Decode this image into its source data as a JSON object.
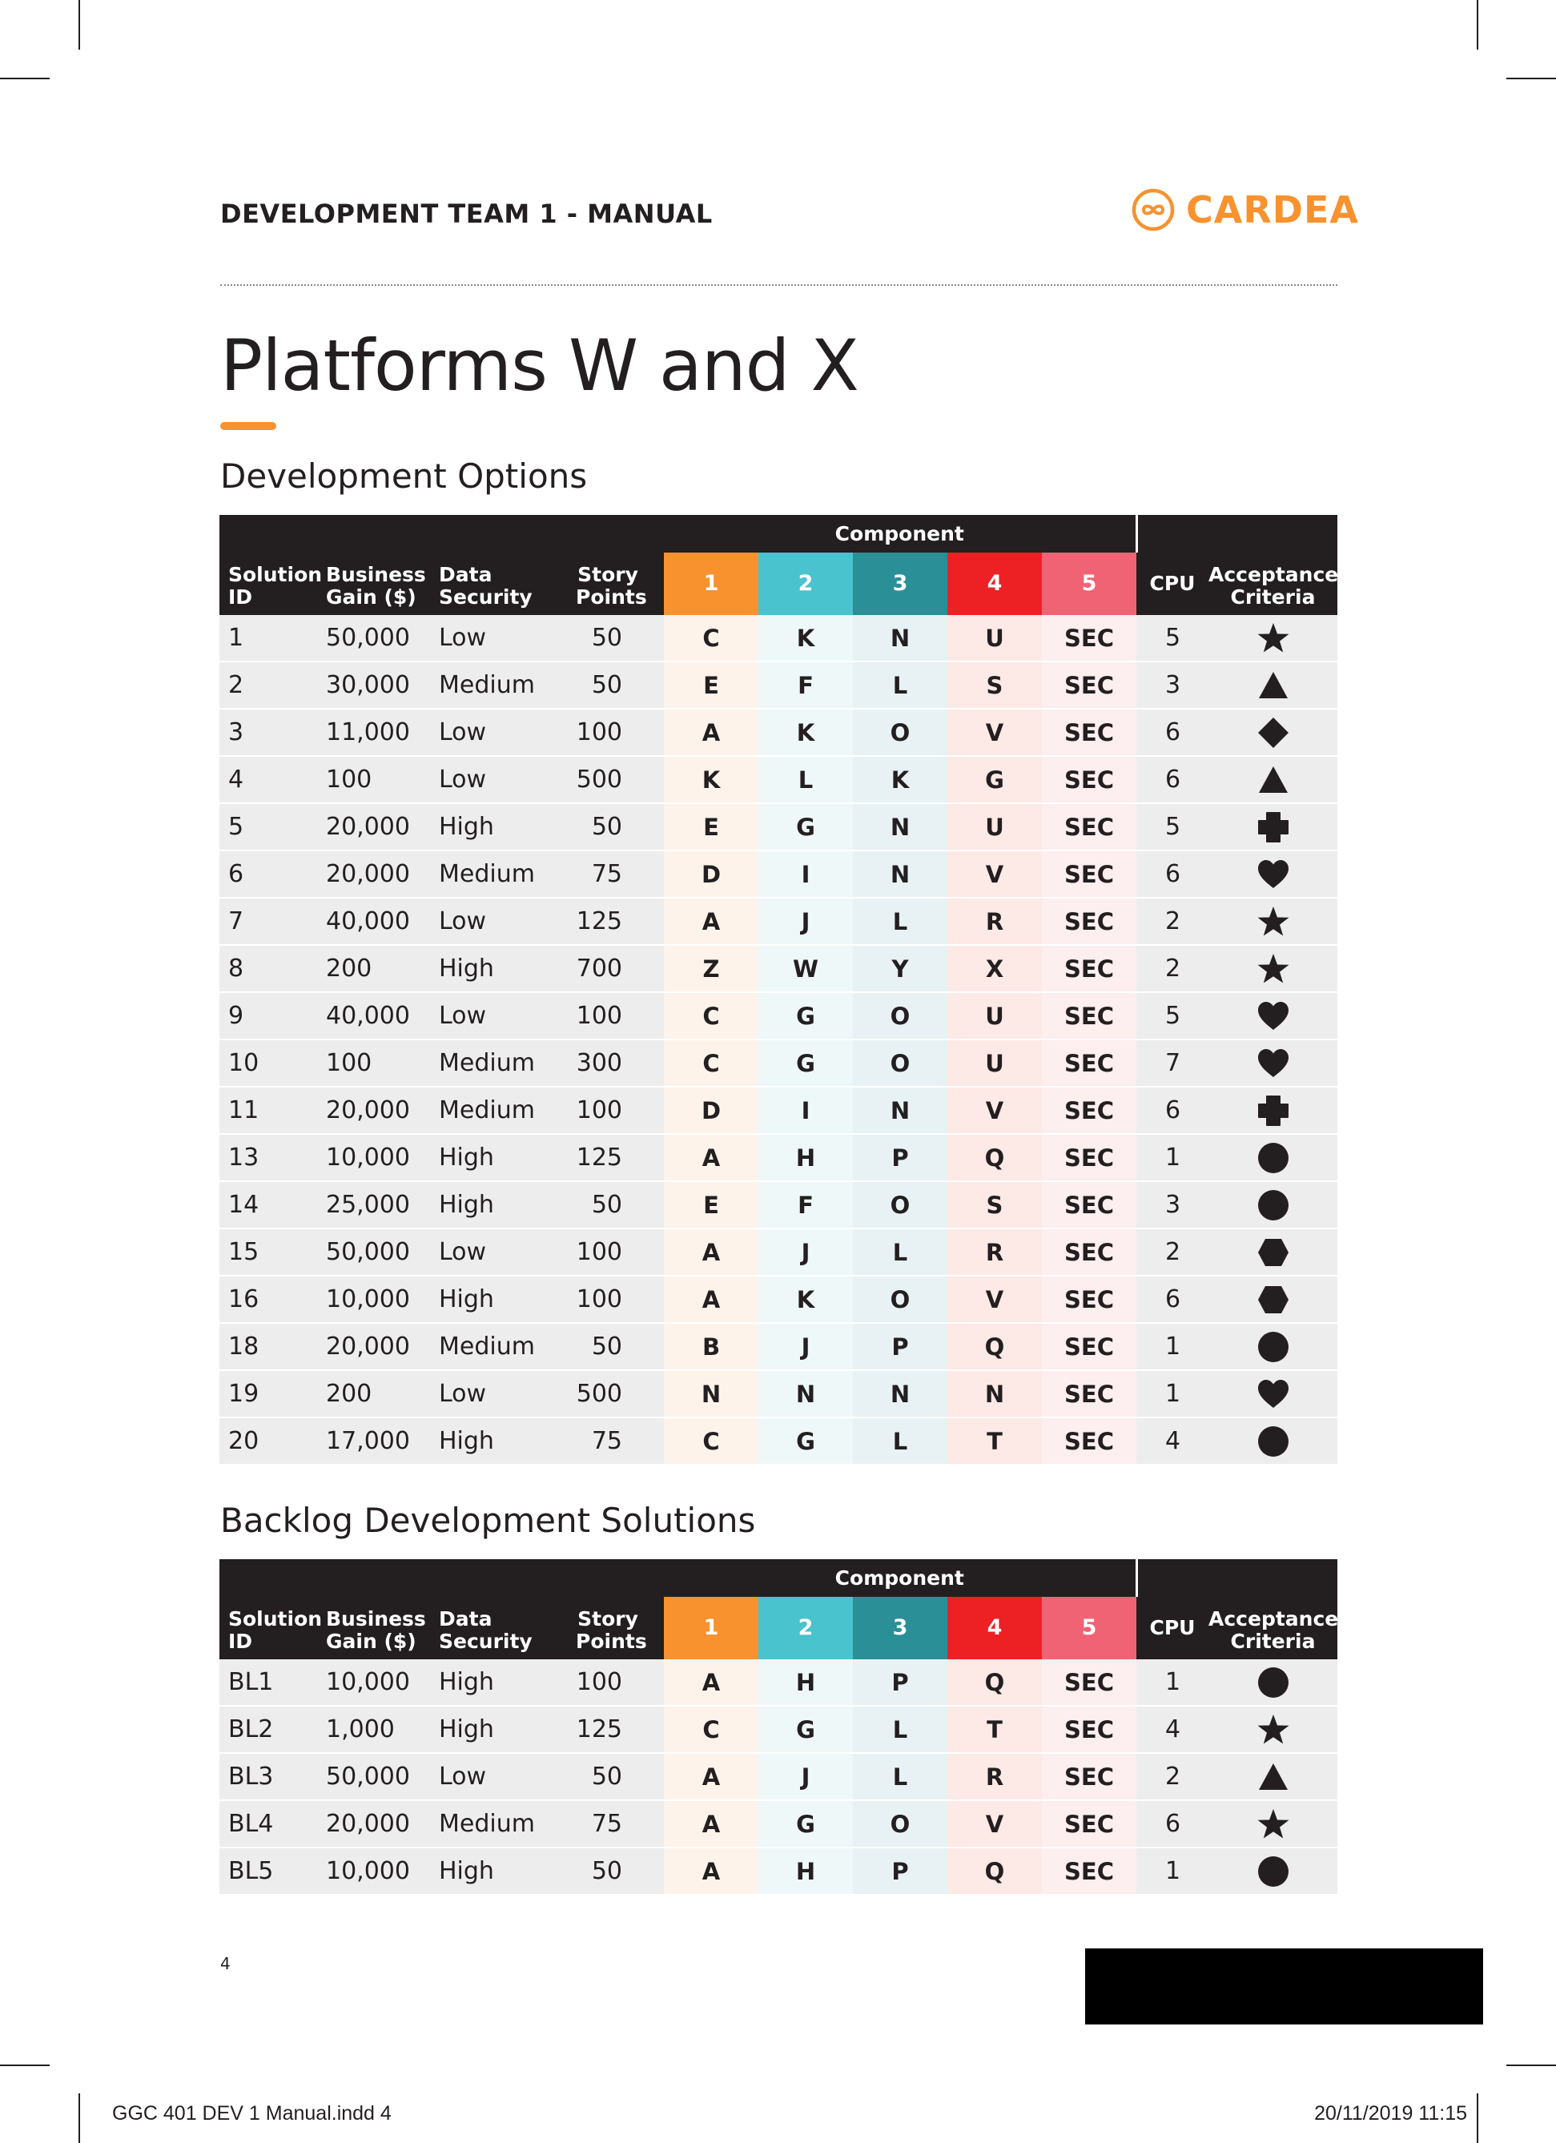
{
  "header": {
    "title": "DEVELOPMENT TEAM 1 - MANUAL",
    "logo_text": "CARDEA",
    "logo_icon": "infinity-circle-icon",
    "brand_color": "#f7922f"
  },
  "page": {
    "title": "Platforms W and X",
    "number": "4"
  },
  "columns": {
    "component": "Component",
    "solution_id": "Solution ID",
    "business_gain": "Business Gain ($)",
    "data_security": "Data Security",
    "story_points": "Story Points",
    "c1": "1",
    "c2": "2",
    "c3": "3",
    "c4": "4",
    "c5": "5",
    "cpu": "CPU",
    "acceptance": "Acceptance Criteria"
  },
  "component_colors": [
    "#f7922f",
    "#49c3cd",
    "#2b8f97",
    "#ed2024",
    "#f06374"
  ],
  "options": {
    "heading": "Development Options",
    "rows": [
      {
        "id": "1",
        "gain": "50,000",
        "security": "Low",
        "points": "50",
        "c1": "C",
        "c2": "K",
        "c3": "N",
        "c4": "U",
        "c5": "SEC",
        "cpu": "5",
        "shape": "star"
      },
      {
        "id": "2",
        "gain": "30,000",
        "security": "Medium",
        "points": "50",
        "c1": "E",
        "c2": "F",
        "c3": "L",
        "c4": "S",
        "c5": "SEC",
        "cpu": "3",
        "shape": "triangle"
      },
      {
        "id": "3",
        "gain": "11,000",
        "security": "Low",
        "points": "100",
        "c1": "A",
        "c2": "K",
        "c3": "O",
        "c4": "V",
        "c5": "SEC",
        "cpu": "6",
        "shape": "diamond"
      },
      {
        "id": "4",
        "gain": "100",
        "security": "Low",
        "points": "500",
        "c1": "K",
        "c2": "L",
        "c3": "K",
        "c4": "G",
        "c5": "SEC",
        "cpu": "6",
        "shape": "triangle"
      },
      {
        "id": "5",
        "gain": "20,000",
        "security": "High",
        "points": "50",
        "c1": "E",
        "c2": "G",
        "c3": "N",
        "c4": "U",
        "c5": "SEC",
        "cpu": "5",
        "shape": "cross"
      },
      {
        "id": "6",
        "gain": "20,000",
        "security": "Medium",
        "points": "75",
        "c1": "D",
        "c2": "I",
        "c3": "N",
        "c4": "V",
        "c5": "SEC",
        "cpu": "6",
        "shape": "heart"
      },
      {
        "id": "7",
        "gain": "40,000",
        "security": "Low",
        "points": "125",
        "c1": "A",
        "c2": "J",
        "c3": "L",
        "c4": "R",
        "c5": "SEC",
        "cpu": "2",
        "shape": "star"
      },
      {
        "id": "8",
        "gain": "200",
        "security": "High",
        "points": "700",
        "c1": "Z",
        "c2": "W",
        "c3": "Y",
        "c4": "X",
        "c5": "SEC",
        "cpu": "2",
        "shape": "star"
      },
      {
        "id": "9",
        "gain": "40,000",
        "security": "Low",
        "points": "100",
        "c1": "C",
        "c2": "G",
        "c3": "O",
        "c4": "U",
        "c5": "SEC",
        "cpu": "5",
        "shape": "heart"
      },
      {
        "id": "10",
        "gain": "100",
        "security": "Medium",
        "points": "300",
        "c1": "C",
        "c2": "G",
        "c3": "O",
        "c4": "U",
        "c5": "SEC",
        "cpu": "7",
        "shape": "heart"
      },
      {
        "id": "11",
        "gain": "20,000",
        "security": "Medium",
        "points": "100",
        "c1": "D",
        "c2": "I",
        "c3": "N",
        "c4": "V",
        "c5": "SEC",
        "cpu": "6",
        "shape": "cross"
      },
      {
        "id": "13",
        "gain": "10,000",
        "security": "High",
        "points": "125",
        "c1": "A",
        "c2": "H",
        "c3": "P",
        "c4": "Q",
        "c5": "SEC",
        "cpu": "1",
        "shape": "circle"
      },
      {
        "id": "14",
        "gain": "25,000",
        "security": "High",
        "points": "50",
        "c1": "E",
        "c2": "F",
        "c3": "O",
        "c4": "S",
        "c5": "SEC",
        "cpu": "3",
        "shape": "circle"
      },
      {
        "id": "15",
        "gain": "50,000",
        "security": "Low",
        "points": "100",
        "c1": "A",
        "c2": "J",
        "c3": "L",
        "c4": "R",
        "c5": "SEC",
        "cpu": "2",
        "shape": "hexagon"
      },
      {
        "id": "16",
        "gain": "10,000",
        "security": "High",
        "points": "100",
        "c1": "A",
        "c2": "K",
        "c3": "O",
        "c4": "V",
        "c5": "SEC",
        "cpu": "6",
        "shape": "hexagon"
      },
      {
        "id": "18",
        "gain": "20,000",
        "security": "Medium",
        "points": "50",
        "c1": "B",
        "c2": "J",
        "c3": "P",
        "c4": "Q",
        "c5": "SEC",
        "cpu": "1",
        "shape": "circle"
      },
      {
        "id": "19",
        "gain": "200",
        "security": "Low",
        "points": "500",
        "c1": "N",
        "c2": "N",
        "c3": "N",
        "c4": "N",
        "c5": "SEC",
        "cpu": "1",
        "shape": "heart"
      },
      {
        "id": "20",
        "gain": "17,000",
        "security": "High",
        "points": "75",
        "c1": "C",
        "c2": "G",
        "c3": "L",
        "c4": "T",
        "c5": "SEC",
        "cpu": "4",
        "shape": "circle"
      }
    ]
  },
  "backlog": {
    "heading": "Backlog Development Solutions",
    "rows": [
      {
        "id": "BL1",
        "gain": "10,000",
        "security": "High",
        "points": "100",
        "c1": "A",
        "c2": "H",
        "c3": "P",
        "c4": "Q",
        "c5": "SEC",
        "cpu": "1",
        "shape": "circle"
      },
      {
        "id": "BL2",
        "gain": "1,000",
        "security": "High",
        "points": "125",
        "c1": "C",
        "c2": "G",
        "c3": "L",
        "c4": "T",
        "c5": "SEC",
        "cpu": "4",
        "shape": "star"
      },
      {
        "id": "BL3",
        "gain": "50,000",
        "security": "Low",
        "points": "50",
        "c1": "A",
        "c2": "J",
        "c3": "L",
        "c4": "R",
        "c5": "SEC",
        "cpu": "2",
        "shape": "triangle"
      },
      {
        "id": "BL4",
        "gain": "20,000",
        "security": "Medium",
        "points": "75",
        "c1": "A",
        "c2": "G",
        "c3": "O",
        "c4": "V",
        "c5": "SEC",
        "cpu": "6",
        "shape": "star"
      },
      {
        "id": "BL5",
        "gain": "10,000",
        "security": "High",
        "points": "50",
        "c1": "A",
        "c2": "H",
        "c3": "P",
        "c4": "Q",
        "c5": "SEC",
        "cpu": "1",
        "shape": "circle"
      }
    ]
  },
  "footer": {
    "file": "GGC 401 DEV 1 Manual.indd   4",
    "date": "20/11/2019   11:15"
  }
}
